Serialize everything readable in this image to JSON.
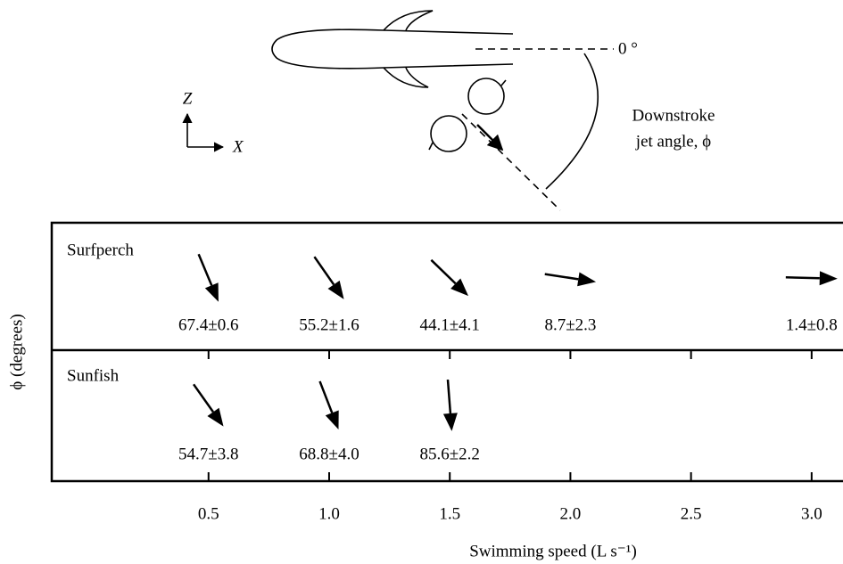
{
  "chart_data": {
    "type": "arrow",
    "xlabel": "Swimming speed (L s⁻¹)",
    "ylabel": "ϕ (degrees)",
    "xlim": [
      -0.15,
      3.13
    ],
    "xticks": [
      0.5,
      {
        "value": 1,
        "label": "1.0"
      },
      1.5,
      {
        "value": 2,
        "label": "2.0"
      },
      2.5,
      {
        "value": 3,
        "label": "3.0"
      }
    ],
    "series": [
      {
        "name": "Surfperch",
        "color": "#000000",
        "x": [
          0.5,
          1,
          1.5,
          2,
          3
        ],
        "values": [
          67.4,
          55.2,
          44.1,
          8.7,
          1.4
        ],
        "value_labels": [
          "67.4±0.6",
          "55.2±1.6",
          "44.1±4.1",
          "8.7±2.3",
          "1.4±0.8"
        ]
      },
      {
        "name": "Sunfish",
        "color": "#000000",
        "x": [
          0.5,
          1,
          1.5
        ],
        "values": [
          54.7,
          68.8,
          85.6
        ],
        "value_labels": [
          "54.7±3.8",
          "68.8±4.0",
          "85.6±2.2"
        ]
      }
    ],
    "inset": {
      "zero_label": "0 °",
      "angle_label": [
        "Downstroke",
        "jet angle, ϕ"
      ],
      "axes": [
        "Z",
        "X"
      ]
    }
  }
}
